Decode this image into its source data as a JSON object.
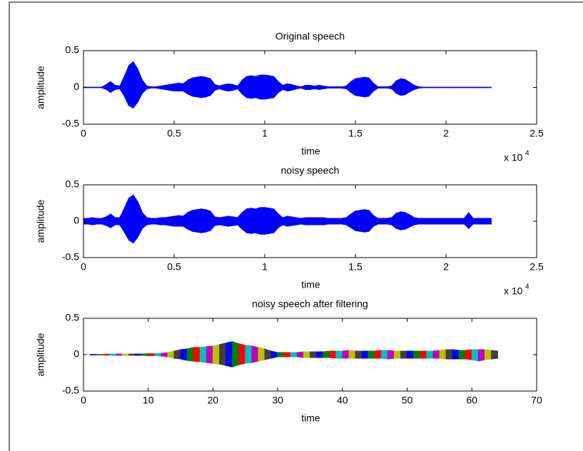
{
  "chart_data": [
    {
      "type": "area",
      "title": "Original speech",
      "xlabel": "time",
      "ylabel": "amplitude",
      "xscale": {
        "text": "x 10",
        "power": 4
      },
      "color": "#0000ff",
      "x": [
        0,
        0.025,
        0.05,
        0.075,
        0.1,
        0.125,
        0.15,
        0.175,
        0.2,
        0.225,
        0.25,
        0.275,
        0.3,
        0.325,
        0.35,
        0.375,
        0.4,
        0.425,
        0.45,
        0.475,
        0.5,
        0.525,
        0.55,
        0.575,
        0.6,
        0.625,
        0.65,
        0.675,
        0.7,
        0.725,
        0.75,
        0.775,
        0.8,
        0.825,
        0.85,
        0.875,
        0.9,
        0.925,
        0.95,
        0.975,
        1,
        1.025,
        1.05,
        1.075,
        1.1,
        1.125,
        1.15,
        1.175,
        1.2,
        1.225,
        1.25,
        1.275,
        1.3,
        1.325,
        1.35,
        1.375,
        1.4,
        1.425,
        1.45,
        1.475,
        1.5,
        1.525,
        1.55,
        1.575,
        1.6,
        1.625,
        1.65,
        1.675,
        1.7,
        1.725,
        1.75,
        1.775,
        1.8,
        1.825,
        1.85,
        1.875,
        1.9,
        1.925,
        1.95,
        1.975,
        2,
        2.025,
        2.05,
        2.075,
        2.1,
        2.125,
        2.15,
        2.175,
        2.2,
        2.225,
        2.25
      ],
      "upper": [
        0.005,
        0.005,
        0.005,
        0.005,
        0.005,
        0.04,
        0.08,
        0.03,
        0.02,
        0.15,
        0.3,
        0.35,
        0.25,
        0.1,
        0.02,
        0.01,
        0.01,
        0.02,
        0.03,
        0.04,
        0.05,
        0.06,
        0.05,
        0.1,
        0.13,
        0.14,
        0.15,
        0.14,
        0.12,
        0.04,
        0.02,
        0.04,
        0.05,
        0.04,
        0.02,
        0.1,
        0.15,
        0.16,
        0.15,
        0.17,
        0.17,
        0.16,
        0.15,
        0.08,
        0.03,
        0.05,
        0.04,
        0.02,
        0.01,
        0.03,
        0.03,
        0.02,
        0.03,
        0.02,
        0.01,
        0.01,
        0.01,
        0.01,
        0.02,
        0.08,
        0.12,
        0.13,
        0.14,
        0.13,
        0.06,
        0.01,
        0.01,
        0.01,
        0.02,
        0.09,
        0.12,
        0.11,
        0.07,
        0.03,
        0.01,
        0.005,
        0.005,
        0.005,
        0.005,
        0.005,
        0.005,
        0.005,
        0.005,
        0.005,
        0.005,
        0.005,
        0.005,
        0.005,
        0.005,
        0.005,
        0.005
      ],
      "lower": [
        -0.005,
        -0.005,
        -0.005,
        -0.005,
        -0.005,
        -0.03,
        -0.07,
        -0.03,
        -0.02,
        -0.12,
        -0.25,
        -0.28,
        -0.2,
        -0.08,
        -0.02,
        -0.01,
        -0.01,
        -0.02,
        -0.03,
        -0.04,
        -0.05,
        -0.05,
        -0.05,
        -0.09,
        -0.12,
        -0.13,
        -0.14,
        -0.13,
        -0.11,
        -0.04,
        -0.02,
        -0.04,
        -0.05,
        -0.04,
        -0.02,
        -0.09,
        -0.14,
        -0.15,
        -0.14,
        -0.16,
        -0.16,
        -0.15,
        -0.14,
        -0.07,
        -0.03,
        -0.05,
        -0.04,
        -0.02,
        -0.01,
        -0.03,
        -0.03,
        -0.02,
        -0.03,
        -0.02,
        -0.01,
        -0.01,
        -0.01,
        -0.01,
        -0.02,
        -0.07,
        -0.11,
        -0.12,
        -0.13,
        -0.12,
        -0.05,
        -0.01,
        -0.01,
        -0.01,
        -0.02,
        -0.08,
        -0.11,
        -0.1,
        -0.06,
        -0.03,
        -0.01,
        -0.005,
        -0.005,
        -0.005,
        -0.005,
        -0.005,
        -0.005,
        -0.005,
        -0.005,
        -0.005,
        -0.005,
        -0.005,
        -0.005,
        -0.005,
        -0.005,
        -0.005,
        -0.005
      ],
      "xlim": [
        0,
        2.5
      ],
      "xticks": [
        0,
        0.5,
        1,
        1.5,
        2,
        2.5
      ],
      "ylim": [
        -0.5,
        0.5
      ],
      "yticks": [
        -0.5,
        0,
        0.5
      ]
    },
    {
      "type": "area",
      "title": "noisy speech",
      "xlabel": "time",
      "ylabel": "amplitude",
      "xscale": {
        "text": "x 10",
        "power": 4
      },
      "color": "#0000ff",
      "x": [
        0,
        0.025,
        0.05,
        0.075,
        0.1,
        0.125,
        0.15,
        0.175,
        0.2,
        0.225,
        0.25,
        0.275,
        0.3,
        0.325,
        0.35,
        0.375,
        0.4,
        0.425,
        0.45,
        0.475,
        0.5,
        0.525,
        0.55,
        0.575,
        0.6,
        0.625,
        0.65,
        0.675,
        0.7,
        0.725,
        0.75,
        0.775,
        0.8,
        0.825,
        0.85,
        0.875,
        0.9,
        0.925,
        0.95,
        0.975,
        1,
        1.025,
        1.05,
        1.075,
        1.1,
        1.125,
        1.15,
        1.175,
        1.2,
        1.225,
        1.25,
        1.275,
        1.3,
        1.325,
        1.35,
        1.375,
        1.4,
        1.425,
        1.45,
        1.475,
        1.5,
        1.525,
        1.55,
        1.575,
        1.6,
        1.625,
        1.65,
        1.675,
        1.7,
        1.725,
        1.75,
        1.775,
        1.8,
        1.825,
        1.85,
        1.875,
        1.9,
        1.925,
        1.95,
        1.975,
        2,
        2.025,
        2.05,
        2.075,
        2.1,
        2.125,
        2.15,
        2.175,
        2.2,
        2.225,
        2.25
      ],
      "upper": [
        0.04,
        0.04,
        0.05,
        0.04,
        0.04,
        0.06,
        0.1,
        0.05,
        0.05,
        0.18,
        0.32,
        0.36,
        0.27,
        0.12,
        0.05,
        0.04,
        0.04,
        0.05,
        0.05,
        0.06,
        0.07,
        0.08,
        0.07,
        0.12,
        0.15,
        0.16,
        0.17,
        0.16,
        0.14,
        0.06,
        0.05,
        0.06,
        0.07,
        0.06,
        0.05,
        0.12,
        0.17,
        0.18,
        0.17,
        0.19,
        0.19,
        0.18,
        0.17,
        0.1,
        0.05,
        0.07,
        0.06,
        0.05,
        0.04,
        0.05,
        0.05,
        0.05,
        0.05,
        0.05,
        0.04,
        0.04,
        0.04,
        0.04,
        0.05,
        0.1,
        0.14,
        0.15,
        0.16,
        0.15,
        0.08,
        0.04,
        0.04,
        0.04,
        0.05,
        0.11,
        0.13,
        0.12,
        0.09,
        0.05,
        0.04,
        0.04,
        0.04,
        0.04,
        0.04,
        0.04,
        0.04,
        0.04,
        0.04,
        0.04,
        0.04,
        0.12,
        0.04,
        0.04,
        0.04,
        0.04,
        0.04
      ],
      "lower": [
        -0.04,
        -0.04,
        -0.05,
        -0.04,
        -0.04,
        -0.06,
        -0.09,
        -0.05,
        -0.05,
        -0.15,
        -0.26,
        -0.3,
        -0.22,
        -0.1,
        -0.05,
        -0.04,
        -0.04,
        -0.05,
        -0.05,
        -0.06,
        -0.07,
        -0.07,
        -0.07,
        -0.11,
        -0.14,
        -0.15,
        -0.16,
        -0.15,
        -0.13,
        -0.06,
        -0.05,
        -0.06,
        -0.07,
        -0.06,
        -0.05,
        -0.11,
        -0.16,
        -0.17,
        -0.16,
        -0.18,
        -0.18,
        -0.17,
        -0.16,
        -0.09,
        -0.05,
        -0.07,
        -0.06,
        -0.05,
        -0.04,
        -0.05,
        -0.05,
        -0.05,
        -0.05,
        -0.05,
        -0.04,
        -0.04,
        -0.04,
        -0.04,
        -0.05,
        -0.09,
        -0.13,
        -0.14,
        -0.15,
        -0.14,
        -0.07,
        -0.04,
        -0.04,
        -0.04,
        -0.05,
        -0.1,
        -0.12,
        -0.11,
        -0.08,
        -0.05,
        -0.04,
        -0.04,
        -0.04,
        -0.04,
        -0.04,
        -0.04,
        -0.04,
        -0.04,
        -0.04,
        -0.04,
        -0.04,
        -0.1,
        -0.04,
        -0.04,
        -0.04,
        -0.04,
        -0.04
      ],
      "xlim": [
        0,
        2.5
      ],
      "xticks": [
        0,
        0.5,
        1,
        1.5,
        2,
        2.5
      ],
      "ylim": [
        -0.5,
        0.5
      ],
      "yticks": [
        -0.5,
        0,
        0.5
      ]
    },
    {
      "type": "area",
      "title": "noisy speech after filtering",
      "xlabel": "time",
      "ylabel": "amplitude",
      "colors": [
        "#0000ff",
        "#008000",
        "#ff0000",
        "#00bfbf",
        "#bf00bf",
        "#bfbf00",
        "#404040"
      ],
      "x": [
        1,
        2,
        3,
        4,
        5,
        6,
        7,
        8,
        9,
        10,
        11,
        12,
        13,
        14,
        15,
        16,
        17,
        18,
        19,
        20,
        21,
        22,
        23,
        24,
        25,
        26,
        27,
        28,
        29,
        30,
        31,
        32,
        33,
        34,
        35,
        36,
        37,
        38,
        39,
        40,
        41,
        42,
        43,
        44,
        45,
        46,
        47,
        48,
        49,
        50,
        51,
        52,
        53,
        54,
        55,
        56,
        57,
        58,
        59,
        60,
        61,
        62,
        63,
        64
      ],
      "upper": [
        0.005,
        0.005,
        0.005,
        0.01,
        0.01,
        0.01,
        0.01,
        0.01,
        0.01,
        0.015,
        0.015,
        0.02,
        0.03,
        0.05,
        0.07,
        0.08,
        0.1,
        0.1,
        0.11,
        0.12,
        0.14,
        0.16,
        0.18,
        0.15,
        0.13,
        0.12,
        0.1,
        0.08,
        0.05,
        0.03,
        0.03,
        0.03,
        0.03,
        0.04,
        0.04,
        0.04,
        0.04,
        0.05,
        0.05,
        0.05,
        0.06,
        0.05,
        0.05,
        0.05,
        0.05,
        0.06,
        0.06,
        0.05,
        0.05,
        0.05,
        0.05,
        0.05,
        0.05,
        0.05,
        0.06,
        0.07,
        0.07,
        0.06,
        0.06,
        0.07,
        0.07,
        0.07,
        0.06,
        0.05
      ],
      "lower": [
        -0.005,
        -0.005,
        -0.005,
        -0.01,
        -0.01,
        -0.01,
        -0.01,
        -0.01,
        -0.01,
        -0.015,
        -0.015,
        -0.02,
        -0.03,
        -0.05,
        -0.06,
        -0.08,
        -0.09,
        -0.1,
        -0.11,
        -0.12,
        -0.13,
        -0.15,
        -0.17,
        -0.14,
        -0.12,
        -0.11,
        -0.09,
        -0.07,
        -0.05,
        -0.03,
        -0.03,
        -0.03,
        -0.03,
        -0.04,
        -0.04,
        -0.04,
        -0.04,
        -0.04,
        -0.05,
        -0.05,
        -0.05,
        -0.05,
        -0.05,
        -0.05,
        -0.05,
        -0.05,
        -0.06,
        -0.05,
        -0.05,
        -0.05,
        -0.05,
        -0.05,
        -0.05,
        -0.05,
        -0.05,
        -0.06,
        -0.06,
        -0.06,
        -0.06,
        -0.07,
        -0.09,
        -0.07,
        -0.06,
        -0.05
      ],
      "xlim": [
        0,
        70
      ],
      "xticks": [
        0,
        10,
        20,
        30,
        40,
        50,
        60,
        70
      ],
      "ylim": [
        -0.5,
        0.5
      ],
      "yticks": [
        -0.5,
        0,
        0.5
      ]
    }
  ]
}
